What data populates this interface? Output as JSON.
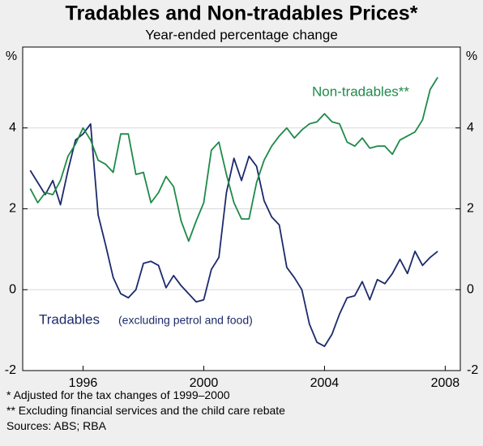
{
  "chart_data": {
    "type": "line",
    "title": "Tradables and Non-tradables Prices*",
    "subtitle": "Year-ended percentage change",
    "y_unit_left": "%",
    "y_unit_right": "%",
    "x": [
      1994.25,
      1994.5,
      1994.75,
      1995,
      1995.25,
      1995.5,
      1995.75,
      1996,
      1996.25,
      1996.5,
      1996.75,
      1997,
      1997.25,
      1997.5,
      1997.75,
      1998,
      1998.25,
      1998.5,
      1998.75,
      1999,
      1999.25,
      1999.5,
      1999.75,
      2000,
      2000.25,
      2000.5,
      2000.75,
      2001,
      2001.25,
      2001.5,
      2001.75,
      2002,
      2002.25,
      2002.5,
      2002.75,
      2003,
      2003.25,
      2003.5,
      2003.75,
      2004,
      2004.25,
      2004.5,
      2004.75,
      2005,
      2005.25,
      2005.5,
      2005.75,
      2006,
      2006.25,
      2006.5,
      2006.75,
      2007,
      2007.25,
      2007.5,
      2007.75
    ],
    "series": [
      {
        "name": "Tradables",
        "color": "#1c2a6b",
        "values": [
          2.95,
          2.65,
          2.35,
          2.7,
          2.1,
          2.95,
          3.7,
          3.85,
          4.1,
          1.85,
          1.1,
          0.3,
          -0.1,
          -0.2,
          0.0,
          0.65,
          0.7,
          0.6,
          0.05,
          0.35,
          0.1,
          -0.1,
          -0.3,
          -0.25,
          0.5,
          0.8,
          2.4,
          3.25,
          2.7,
          3.3,
          3.05,
          2.2,
          1.8,
          1.6,
          0.55,
          0.3,
          0.0,
          -0.85,
          -1.3,
          -1.4,
          -1.1,
          -0.6,
          -0.2,
          -0.15,
          0.2,
          -0.25,
          0.25,
          0.15,
          0.4,
          0.75,
          0.4,
          0.95,
          0.6,
          0.8,
          0.95
        ]
      },
      {
        "name": "Non-tradables**",
        "color": "#1e8a48",
        "values": [
          2.5,
          2.15,
          2.4,
          2.35,
          2.7,
          3.3,
          3.6,
          4.0,
          3.7,
          3.2,
          3.1,
          2.9,
          3.85,
          3.85,
          2.85,
          2.9,
          2.15,
          2.4,
          2.8,
          2.55,
          1.7,
          1.2,
          1.7,
          2.15,
          3.45,
          3.65,
          2.85,
          2.15,
          1.75,
          1.75,
          2.65,
          3.2,
          3.55,
          3.8,
          4.0,
          3.75,
          3.95,
          4.1,
          4.15,
          4.35,
          4.15,
          4.1,
          3.65,
          3.55,
          3.75,
          3.5,
          3.55,
          3.55,
          3.35,
          3.7,
          3.8,
          3.9,
          4.2,
          4.95,
          5.25
        ]
      }
    ],
    "series_note": "(excluding petrol and food)",
    "xlim": [
      1994,
      2008.5
    ],
    "xticks": [
      1996,
      2000,
      2004,
      2008
    ],
    "ylim": [
      -2,
      6
    ],
    "yticks": [
      -2,
      0,
      2,
      4
    ],
    "grid": true,
    "footnotes": [
      "*   Adjusted for the tax changes of 1999–2000",
      "**  Excluding financial services and the child care rebate",
      "Sources: ABS; RBA"
    ]
  }
}
